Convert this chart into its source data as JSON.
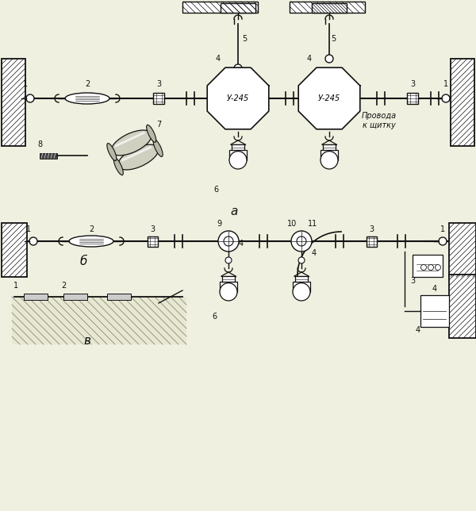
{
  "bg_color": "#f0f0e0",
  "line_color": "#111111",
  "title_a": "а",
  "title_b": "б",
  "title_v": "в",
  "label_provoda": "Провода\nк щитку",
  "label_u245": "У-245",
  "fig_w": 6.0,
  "fig_h": 6.44,
  "dpi": 100
}
